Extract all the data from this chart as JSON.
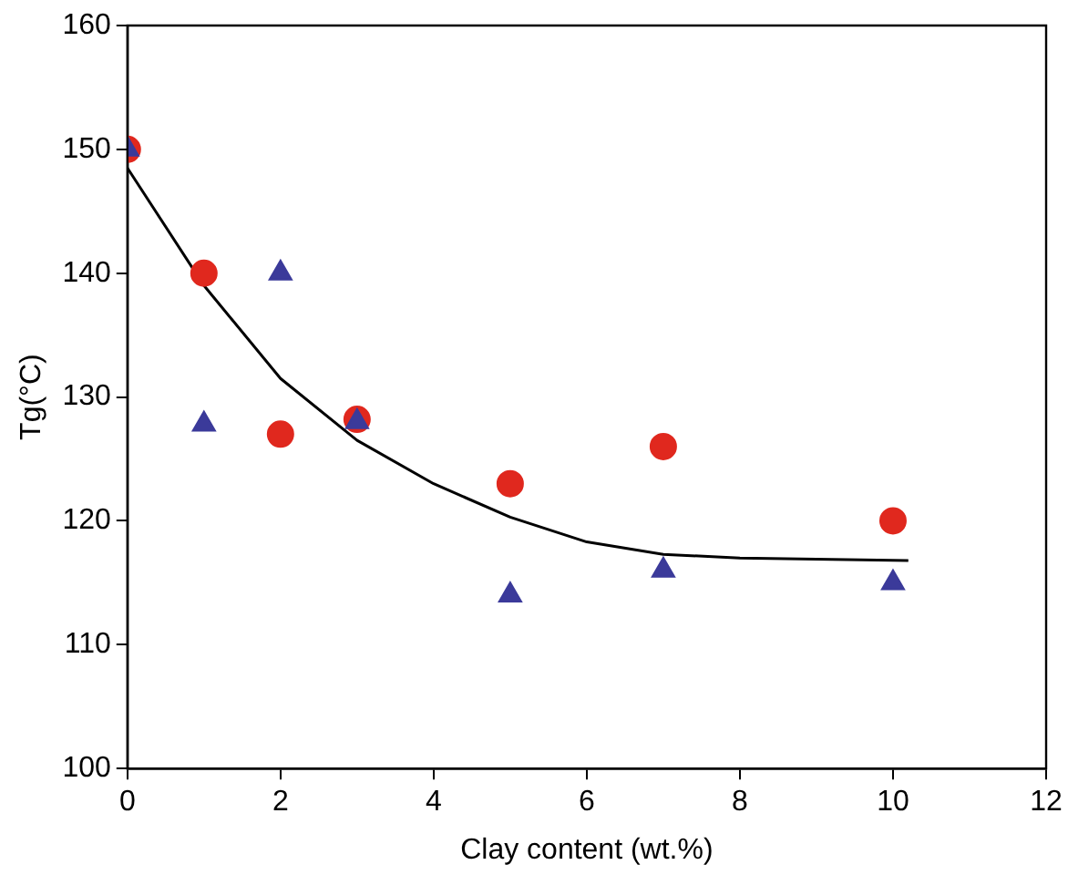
{
  "chart_data": {
    "type": "scatter",
    "xlabel": "Clay content (wt.%)",
    "ylabel": "Tg(°C)",
    "xlim": [
      0,
      12
    ],
    "xticks": [
      0,
      2,
      4,
      6,
      8,
      10,
      12
    ],
    "ylim": [
      100,
      160
    ],
    "yticks": [
      100,
      110,
      120,
      130,
      140,
      150,
      160
    ],
    "grid": false,
    "legend": false,
    "series": [
      {
        "color": "#e0281e",
        "marker": "circle",
        "x": [
          0,
          1,
          2,
          3,
          5,
          7,
          10
        ],
        "values": [
          150,
          140,
          127,
          128.2,
          123,
          126,
          120
        ]
      },
      {
        "color": "#3b3a9a",
        "marker": "triangle",
        "x": [
          0,
          1,
          2,
          3,
          5,
          7,
          10
        ],
        "values": [
          150,
          127.8,
          140,
          128,
          114,
          116,
          115
        ]
      },
      {
        "type": "line",
        "color": "#000000",
        "marker": "none",
        "x": [
          0,
          1,
          2,
          3,
          4,
          5,
          6,
          7,
          8,
          10.2
        ],
        "values": [
          148.5,
          139,
          131.5,
          126.5,
          123,
          120.3,
          118.3,
          117.3,
          117,
          116.8
        ]
      }
    ]
  }
}
